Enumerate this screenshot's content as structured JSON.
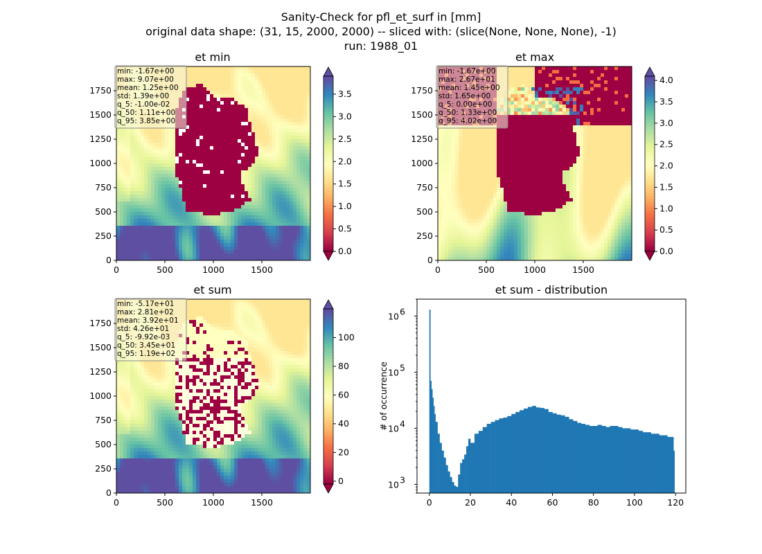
{
  "figure": {
    "title_line1": "Sanity-Check for pfl_et_surf in [mm]",
    "title_line2": "original data shape: (31, 15, 2000, 2000) -- sliced with: (slice(None, None, None), -1)",
    "title_line3": "run: 1988_01"
  },
  "panels": {
    "et_min": {
      "title": "et min",
      "stats": [
        "min: -1.67e+00",
        "max: 9.07e+00",
        "mean: 1.25e+00",
        "std: 1.39e+00",
        "q_5: -1.00e-02",
        "q_50: 1.11e+00",
        "q_95: 3.85e+00"
      ]
    },
    "et_max": {
      "title": "et max",
      "stats": [
        "min: -1.67e+00",
        "max: 2.67e+01",
        "mean: 1.45e+00",
        "std: 1.65e+00",
        "q_5: 0.00e+00",
        "q_50: 1.33e+00",
        "q_95: 4.02e+00"
      ]
    },
    "et_sum": {
      "title": "et sum",
      "stats": [
        "min: -5.17e+01",
        "max: 2.81e+02",
        "mean: 3.92e+01",
        "std: 4.26e+01",
        "q_5: -9.92e-03",
        "q_50: 3.45e+01",
        "q_95: 1.19e+02"
      ]
    },
    "dist": {
      "title": "et sum - distribution",
      "ylabel": "# of occurrence"
    }
  },
  "colors": {
    "spectral": [
      "#9e0142",
      "#d53e4f",
      "#f46d43",
      "#fdae61",
      "#fee08b",
      "#ffffbf",
      "#e6f598",
      "#abdda4",
      "#66c2a5",
      "#3288bd",
      "#5e4fa2"
    ],
    "hist_bar": "#1f77b4",
    "germany_mask": "#9e0142"
  },
  "chart_data": [
    {
      "type": "heatmap",
      "title": "et min",
      "xticks": [
        "0",
        "500",
        "1000",
        "1500"
      ],
      "yticks": [
        "0",
        "250",
        "500",
        "750",
        "1000",
        "1250",
        "1500",
        "1750"
      ],
      "xlim": [
        0,
        2000
      ],
      "ylim": [
        0,
        2000
      ],
      "colorbar": {
        "cmap": "Spectral",
        "vmin": 0.0,
        "vmax": 3.9,
        "extend": "both",
        "ticks": [
          "0.0",
          "0.5",
          "1.0",
          "1.5",
          "2.0",
          "2.5",
          "3.0",
          "3.5"
        ]
      }
    },
    {
      "type": "heatmap",
      "title": "et max",
      "xticks": [
        "0",
        "500",
        "1000",
        "1500"
      ],
      "yticks": [
        "0",
        "250",
        "500",
        "750",
        "1000",
        "1250",
        "1500",
        "1750"
      ],
      "xlim": [
        0,
        2000
      ],
      "ylim": [
        0,
        2000
      ],
      "colorbar": {
        "cmap": "Spectral",
        "vmin": 0.0,
        "vmax": 4.1,
        "extend": "both",
        "ticks": [
          "0.0",
          "0.5",
          "1.0",
          "1.5",
          "2.0",
          "2.5",
          "3.0",
          "3.5",
          "4.0"
        ]
      }
    },
    {
      "type": "heatmap",
      "title": "et sum",
      "xticks": [
        "0",
        "500",
        "1000",
        "1500"
      ],
      "yticks": [
        "0",
        "250",
        "500",
        "750",
        "1000",
        "1250",
        "1500",
        "1750"
      ],
      "xlim": [
        0,
        2000
      ],
      "ylim": [
        0,
        2000
      ],
      "colorbar": {
        "cmap": "Spectral",
        "vmin": -2,
        "vmax": 120,
        "extend": "both",
        "ticks": [
          "0",
          "20",
          "40",
          "60",
          "80",
          "100"
        ]
      }
    },
    {
      "type": "bar",
      "title": "et sum - distribution",
      "ylabel": "# of occurrence",
      "yscale": "log",
      "xlim": [
        -6,
        125
      ],
      "ylim": [
        700,
        2000000
      ],
      "xticks": [
        "0",
        "20",
        "40",
        "60",
        "80",
        "100",
        "120"
      ],
      "yticks": [
        "10^3",
        "10^4",
        "10^5",
        "10^6"
      ],
      "bin_width": 0.5,
      "x": [
        0,
        0.5,
        1,
        1.5,
        2,
        2.5,
        3,
        4,
        5,
        6,
        7,
        8,
        9,
        10,
        11,
        12,
        13,
        14,
        15,
        16,
        17,
        18,
        19,
        20,
        22,
        24,
        26,
        28,
        30,
        32,
        34,
        36,
        38,
        40,
        42,
        44,
        46,
        48,
        50,
        52,
        54,
        56,
        58,
        60,
        62,
        64,
        66,
        68,
        70,
        72,
        74,
        76,
        78,
        80,
        82,
        84,
        86,
        88,
        90,
        92,
        94,
        96,
        98,
        100,
        102,
        104,
        106,
        108,
        110,
        112,
        114,
        116,
        118,
        119
      ],
      "values": [
        1300000,
        70000,
        50000,
        35000,
        25000,
        18000,
        13000,
        8000,
        5500,
        4000,
        3000,
        2200,
        1700,
        1350,
        1100,
        950,
        900,
        1500,
        2400,
        2800,
        3400,
        4800,
        6500,
        5500,
        8000,
        9000,
        10500,
        12000,
        13000,
        14000,
        15000,
        15500,
        16500,
        18000,
        19500,
        21000,
        22500,
        24000,
        25000,
        23500,
        23000,
        22000,
        19500,
        18500,
        17500,
        17000,
        16000,
        14500,
        13500,
        12500,
        12000,
        11500,
        11000,
        11000,
        11500,
        11000,
        10500,
        11000,
        11000,
        10500,
        10000,
        10000,
        9500,
        9500,
        9000,
        8500,
        8500,
        8000,
        8000,
        7500,
        7500,
        7000,
        7000,
        4000
      ]
    }
  ]
}
